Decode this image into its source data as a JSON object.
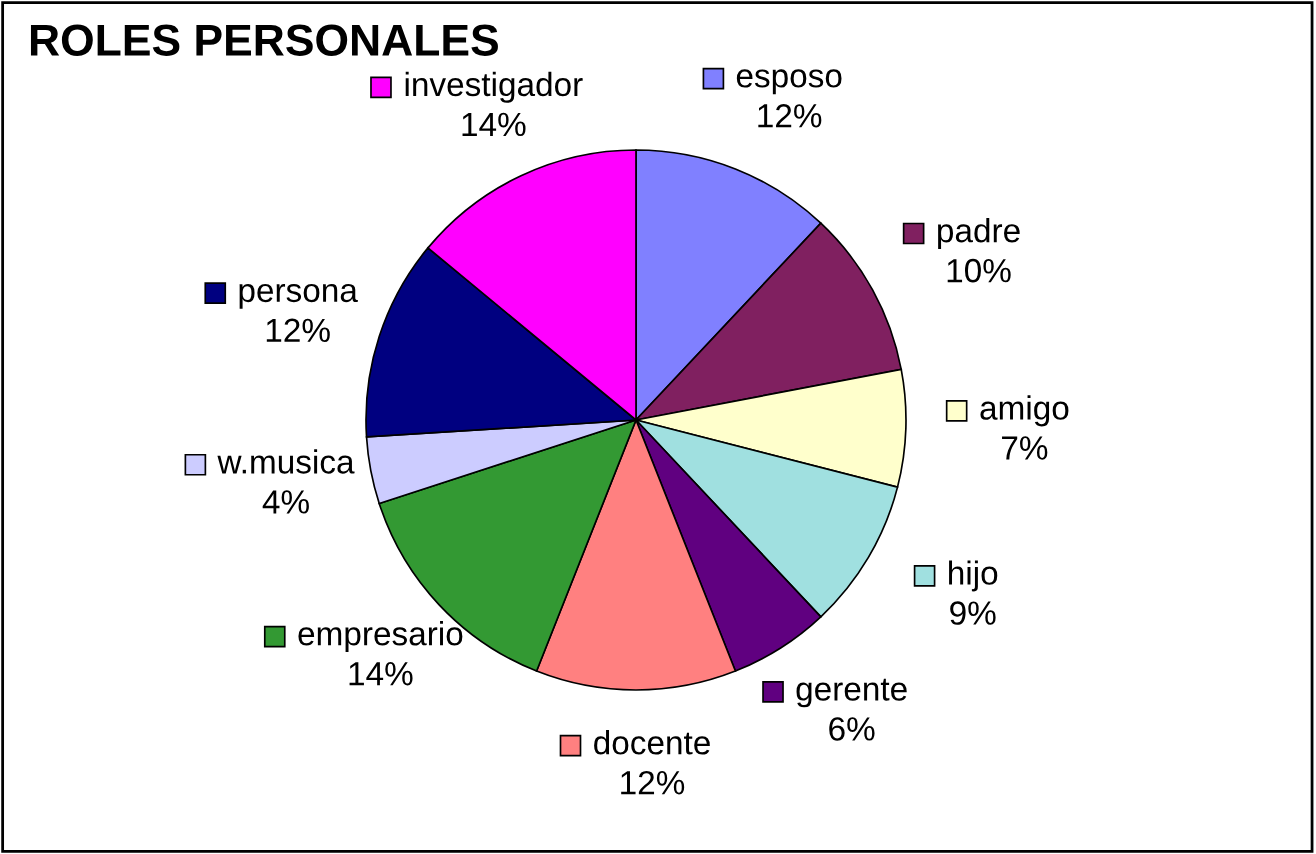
{
  "chart_data": {
    "type": "pie",
    "title": "ROLES PERSONALES",
    "categories": [
      "esposo",
      "padre",
      "amigo",
      "hijo",
      "gerente",
      "docente",
      "empresario",
      "w.musica",
      "persona",
      "investigador"
    ],
    "values": [
      12,
      10,
      7,
      9,
      6,
      12,
      14,
      4,
      12,
      14
    ],
    "value_labels": [
      "12%",
      "10%",
      "7%",
      "9%",
      "6%",
      "12%",
      "14%",
      "4%",
      "12%",
      "14%"
    ],
    "colors": [
      "#8080ff",
      "#802060",
      "#ffffcc",
      "#a0e0e0",
      "#600080",
      "#ff8080",
      "#339933",
      "#ccccff",
      "#000080",
      "#ff00ff"
    ],
    "legend": "right"
  }
}
